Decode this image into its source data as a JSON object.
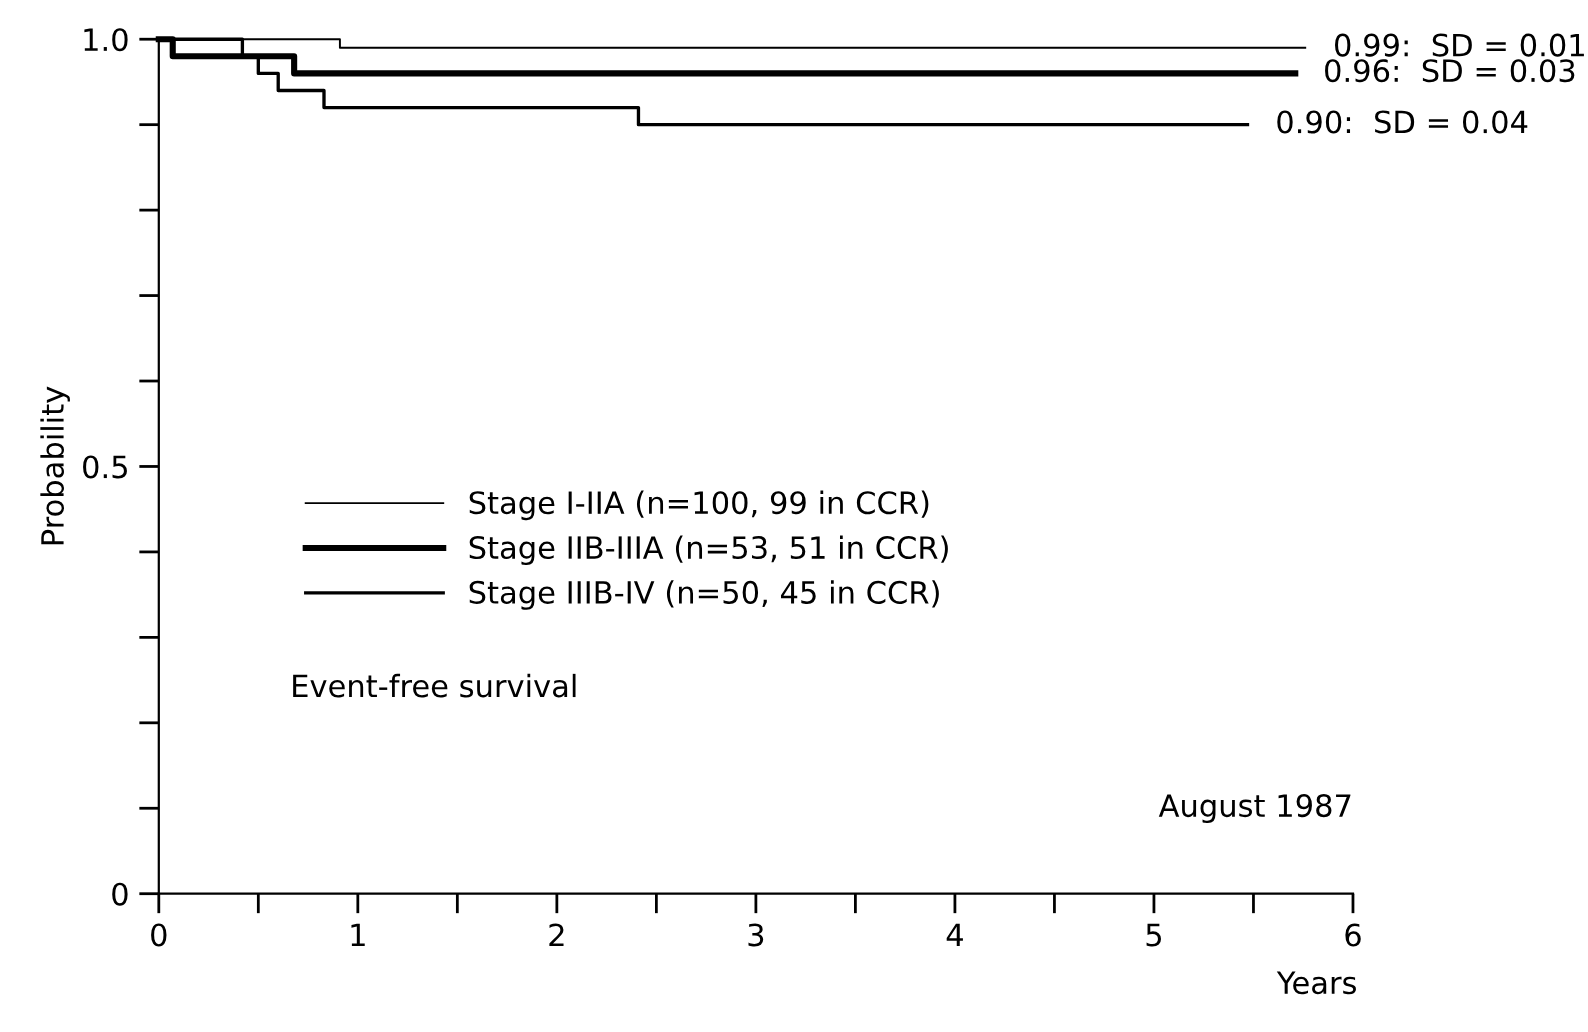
{
  "chart_data": {
    "type": "step",
    "xlabel": "Years",
    "ylabel": "Probability",
    "xlim": [
      0,
      6
    ],
    "ylim": [
      0,
      1.0
    ],
    "xticks": [
      0,
      {
        "value": 0.5,
        "label": null
      },
      1,
      {
        "value": 1.5,
        "label": null
      },
      2,
      {
        "value": 2.5,
        "label": null
      },
      3,
      {
        "value": 3.5,
        "label": null
      },
      4,
      {
        "value": 4.5,
        "label": null
      },
      5,
      {
        "value": 5.5,
        "label": null
      },
      6
    ],
    "yticks": [
      0,
      {
        "value": 0.1,
        "label": null
      },
      {
        "value": 0.2,
        "label": null
      },
      {
        "value": 0.3,
        "label": null
      },
      {
        "value": 0.4,
        "label": null
      },
      0.5,
      {
        "value": 0.6,
        "label": null
      },
      {
        "value": 0.7,
        "label": null
      },
      {
        "value": 0.8,
        "label": null
      },
      {
        "value": 0.9,
        "label": null
      },
      {
        "value": 1.0,
        "label": "1.0"
      }
    ],
    "grid": false,
    "legend": "lower left",
    "marker": "none",
    "line_style": "solid",
    "series": [
      {
        "name": "Stage I-IIA (n=100, 99 in CCR)",
        "color": "#000000",
        "x": [
          0,
          0.91,
          5.76
        ],
        "values": [
          1.0,
          0.99,
          0.99
        ]
      },
      {
        "name": "Stage IIB-IIIA (n=53, 51 in CCR)",
        "color": "#000000",
        "x": [
          0,
          0.07,
          0.68,
          5.71
        ],
        "values": [
          1.0,
          0.98,
          0.96,
          0.96
        ]
      },
      {
        "name": "Stage IIIB-IV (n=50, 45 in CCR)",
        "color": "#000000",
        "x": [
          0,
          0.42,
          0.5,
          0.6,
          0.83,
          2.41,
          5.47
        ],
        "values": [
          1.0,
          0.98,
          0.96,
          0.94,
          0.92,
          0.9,
          0.9
        ]
      }
    ],
    "annotations": [
      {
        "text": "0.99:  SD = 0.01",
        "x": 5.76,
        "y": 0.99
      },
      {
        "text": "0.96:  SD = 0.03",
        "x": 5.71,
        "y": 0.96
      },
      {
        "text": "0.90:  SD = 0.04",
        "x": 5.47,
        "y": 0.9
      },
      "Event-free survival",
      "August 1987"
    ]
  }
}
